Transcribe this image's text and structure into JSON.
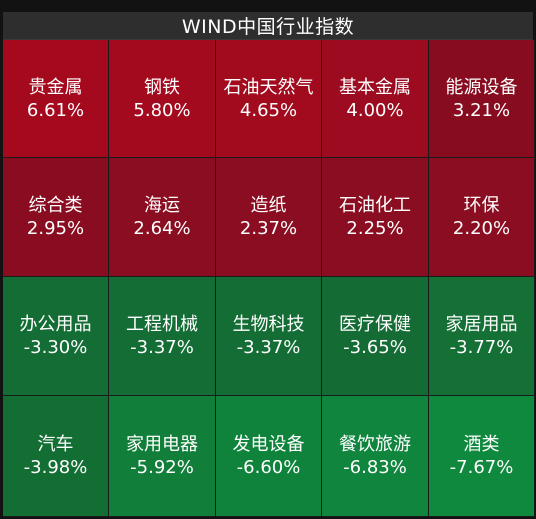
{
  "header": {
    "title": "WIND中国行业指数"
  },
  "tiles": [
    {
      "name": "贵金属",
      "value": "6.61%",
      "color": "#a4091d"
    },
    {
      "name": "钢铁",
      "value": "5.80%",
      "color": "#a40a1e"
    },
    {
      "name": "石油天然气",
      "value": "4.65%",
      "color": "#a20a1e"
    },
    {
      "name": "基本金属",
      "value": "4.00%",
      "color": "#9c0b1f"
    },
    {
      "name": "能源设备",
      "value": "3.21%",
      "color": "#870c20"
    },
    {
      "name": "综合类",
      "value": "2.95%",
      "color": "#8a0c20"
    },
    {
      "name": "海运",
      "value": "2.64%",
      "color": "#8b0d21"
    },
    {
      "name": "造纸",
      "value": "2.37%",
      "color": "#8b0d21"
    },
    {
      "name": "石油化工",
      "value": "2.25%",
      "color": "#8a0d21"
    },
    {
      "name": "环保",
      "value": "2.20%",
      "color": "#8a0d21"
    },
    {
      "name": "办公用品",
      "value": "-3.30%",
      "color": "#146d34"
    },
    {
      "name": "工程机械",
      "value": "-3.37%",
      "color": "#136d34"
    },
    {
      "name": "生物科技",
      "value": "-3.37%",
      "color": "#136d34"
    },
    {
      "name": "医疗保健",
      "value": "-3.65%",
      "color": "#146c34"
    },
    {
      "name": "家居用品",
      "value": "-3.77%",
      "color": "#147035"
    },
    {
      "name": "汽车",
      "value": "-3.98%",
      "color": "#136e34"
    },
    {
      "name": "家用电器",
      "value": "-5.92%",
      "color": "#117e3a"
    },
    {
      "name": "发电设备",
      "value": "-6.60%",
      "color": "#0f833c"
    },
    {
      "name": "餐饮旅游",
      "value": "-6.83%",
      "color": "#0f853d"
    },
    {
      "name": "酒类",
      "value": "-7.67%",
      "color": "#0f893e"
    }
  ]
}
